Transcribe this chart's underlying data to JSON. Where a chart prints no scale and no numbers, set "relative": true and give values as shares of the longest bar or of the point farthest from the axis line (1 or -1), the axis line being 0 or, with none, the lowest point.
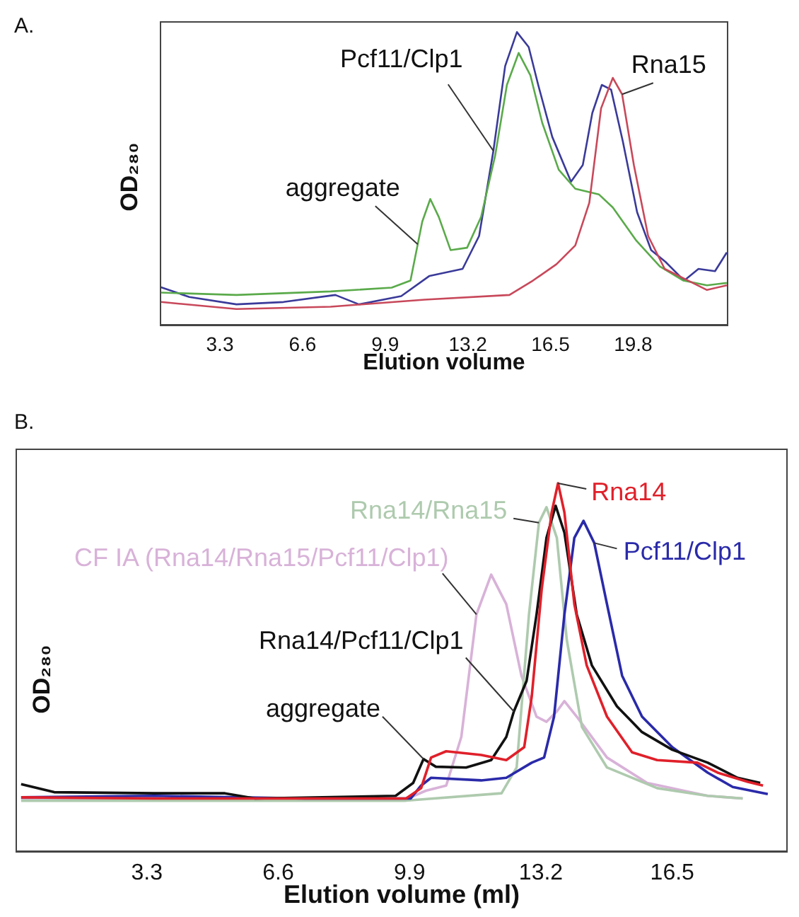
{
  "chart_data": [
    {
      "type": "line",
      "title": "A.",
      "xlabel": "Elution volume",
      "ylabel": "OD₂₈₀",
      "relative": true,
      "xlim": [
        0.9,
        23.6
      ],
      "xticks": [
        3.3,
        6.6,
        9.9,
        13.2,
        16.5,
        19.8
      ],
      "legend": false,
      "grid": false,
      "marker": "none",
      "line_style": "solid",
      "annotations": [
        {
          "text": "aggregate",
          "x": 11.2,
          "y": 0.277
        }
      ],
      "series": [
        {
          "name": "Pcf11/Clp1",
          "color": "#3a3a9a",
          "x": [
            0.95,
            2.08,
            3.96,
            5.84,
            7.91,
            8.85,
            10.54,
            11.67,
            12.99,
            13.65,
            14.22,
            14.69,
            15.16,
            15.63,
            16.01,
            16.57,
            17.32,
            17.79,
            18.17,
            18.55,
            18.92,
            19.39,
            19.96,
            20.52,
            21.09,
            21.84,
            22.41,
            23.07,
            23.54
          ],
          "values": [
            0.13,
            0.097,
            0.072,
            0.08,
            0.104,
            0.072,
            0.1,
            0.169,
            0.193,
            0.305,
            0.595,
            0.884,
            1.0,
            0.949,
            0.82,
            0.643,
            0.49,
            0.547,
            0.724,
            0.82,
            0.804,
            0.627,
            0.386,
            0.257,
            0.217,
            0.153,
            0.193,
            0.185,
            0.249
          ]
        },
        {
          "color": "#5aaa4a",
          "x": [
            0.95,
            3.96,
            7.72,
            10.16,
            10.91,
            11.38,
            11.7,
            12.04,
            12.51,
            13.17,
            13.73,
            14.29,
            14.76,
            15.23,
            15.7,
            16.17,
            16.83,
            17.49,
            18.43,
            18.99,
            19.93,
            20.87,
            21.81,
            22.75,
            23.54
          ],
          "values": [
            0.112,
            0.104,
            0.116,
            0.129,
            0.153,
            0.354,
            0.431,
            0.37,
            0.257,
            0.265,
            0.37,
            0.579,
            0.82,
            0.929,
            0.852,
            0.691,
            0.531,
            0.466,
            0.447,
            0.402,
            0.289,
            0.201,
            0.153,
            0.137,
            0.145
          ]
        },
        {
          "name": "Rna15",
          "color": "#c8485a",
          "x": [
            0.95,
            3.96,
            7.72,
            11.48,
            14.86,
            15.8,
            16.74,
            17.49,
            18.05,
            18.52,
            18.99,
            19.36,
            19.83,
            20.4,
            21.06,
            22.0,
            22.75,
            23.54
          ],
          "values": [
            0.08,
            0.056,
            0.064,
            0.088,
            0.104,
            0.153,
            0.209,
            0.273,
            0.418,
            0.74,
            0.844,
            0.788,
            0.547,
            0.305,
            0.193,
            0.153,
            0.121,
            0.137
          ]
        }
      ]
    },
    {
      "type": "line",
      "title": "B.",
      "xlabel": "Elution volume (ml)",
      "ylabel": "OD₂₈₀",
      "relative": true,
      "xlim": [
        0,
        19.4
      ],
      "xticks": [
        3.3,
        6.6,
        9.9,
        13.2,
        16.5
      ],
      "legend": false,
      "grid": false,
      "marker": "none",
      "line_style": "solid",
      "annotations": [
        {
          "text": "aggregate",
          "x": 10.25,
          "y": 0.252
        }
      ],
      "series": [
        {
          "name": "CF IA (Rna14/Rna15/Pcf11/Clp1)",
          "color": "#d8b2d8",
          "x": [
            0.14,
            9.81,
            10.31,
            10.82,
            11.2,
            11.58,
            11.95,
            12.33,
            12.71,
            13.09,
            13.34,
            13.6,
            13.79,
            14.1,
            14.86,
            15.87,
            17.39,
            18.27
          ],
          "values": [
            0.143,
            0.143,
            0.166,
            0.18,
            0.312,
            0.644,
            0.752,
            0.672,
            0.478,
            0.367,
            0.353,
            0.381,
            0.409,
            0.367,
            0.256,
            0.187,
            0.152,
            0.145
          ]
        },
        {
          "name": "Rna14/Rna15",
          "color": "#aecaae",
          "x": [
            0.14,
            9.81,
            12.21,
            12.59,
            12.9,
            13.15,
            13.34,
            13.6,
            13.85,
            14.23,
            14.86,
            16.12,
            17.39,
            18.27
          ],
          "values": [
            0.139,
            0.139,
            0.159,
            0.229,
            0.644,
            0.893,
            0.935,
            0.852,
            0.575,
            0.339,
            0.229,
            0.173,
            0.152,
            0.145
          ]
        },
        {
          "name": "Pcf11/Clp1",
          "color": "#2a2aaa",
          "x": [
            0.14,
            3.49,
            7.28,
            9.93,
            10.19,
            10.44,
            11.7,
            12.33,
            12.97,
            13.28,
            13.53,
            13.79,
            14.04,
            14.27,
            14.54,
            14.86,
            15.24,
            15.74,
            16.5,
            17.39,
            18.02,
            18.9
          ],
          "values": [
            0.148,
            0.152,
            0.145,
            0.145,
            0.18,
            0.201,
            0.194,
            0.201,
            0.242,
            0.256,
            0.367,
            0.644,
            0.852,
            0.898,
            0.838,
            0.672,
            0.478,
            0.367,
            0.284,
            0.215,
            0.176,
            0.157
          ]
        },
        {
          "name": "Rna14/Pcf11/Clp1",
          "color": "#111111",
          "x": [
            0.14,
            0.97,
            3.49,
            5.26,
            6.02,
            9.55,
            9.99,
            10.25,
            10.56,
            11.32,
            11.95,
            12.33,
            12.52,
            12.84,
            13.09,
            13.34,
            13.57,
            13.79,
            14.1,
            14.48,
            15.11,
            15.74,
            16.5,
            17.39,
            18.14,
            18.71
          ],
          "values": [
            0.184,
            0.162,
            0.159,
            0.159,
            0.145,
            0.152,
            0.187,
            0.252,
            0.231,
            0.229,
            0.249,
            0.312,
            0.381,
            0.464,
            0.644,
            0.852,
            0.939,
            0.866,
            0.644,
            0.506,
            0.395,
            0.325,
            0.277,
            0.242,
            0.201,
            0.187
          ]
        },
        {
          "name": "Rna14",
          "color": "#e0202a",
          "x": [
            0.14,
            3.49,
            7.28,
            9.81,
            10.19,
            10.44,
            10.82,
            11.7,
            12.33,
            12.78,
            12.97,
            13.22,
            13.47,
            13.63,
            13.79,
            14.04,
            14.35,
            14.86,
            15.49,
            16.12,
            17.13,
            17.64,
            18.4,
            18.78
          ],
          "values": [
            0.148,
            0.145,
            0.145,
            0.145,
            0.173,
            0.256,
            0.273,
            0.263,
            0.249,
            0.284,
            0.422,
            0.713,
            0.921,
            1.0,
            0.921,
            0.672,
            0.506,
            0.367,
            0.27,
            0.249,
            0.242,
            0.215,
            0.19,
            0.18
          ]
        }
      ]
    }
  ]
}
